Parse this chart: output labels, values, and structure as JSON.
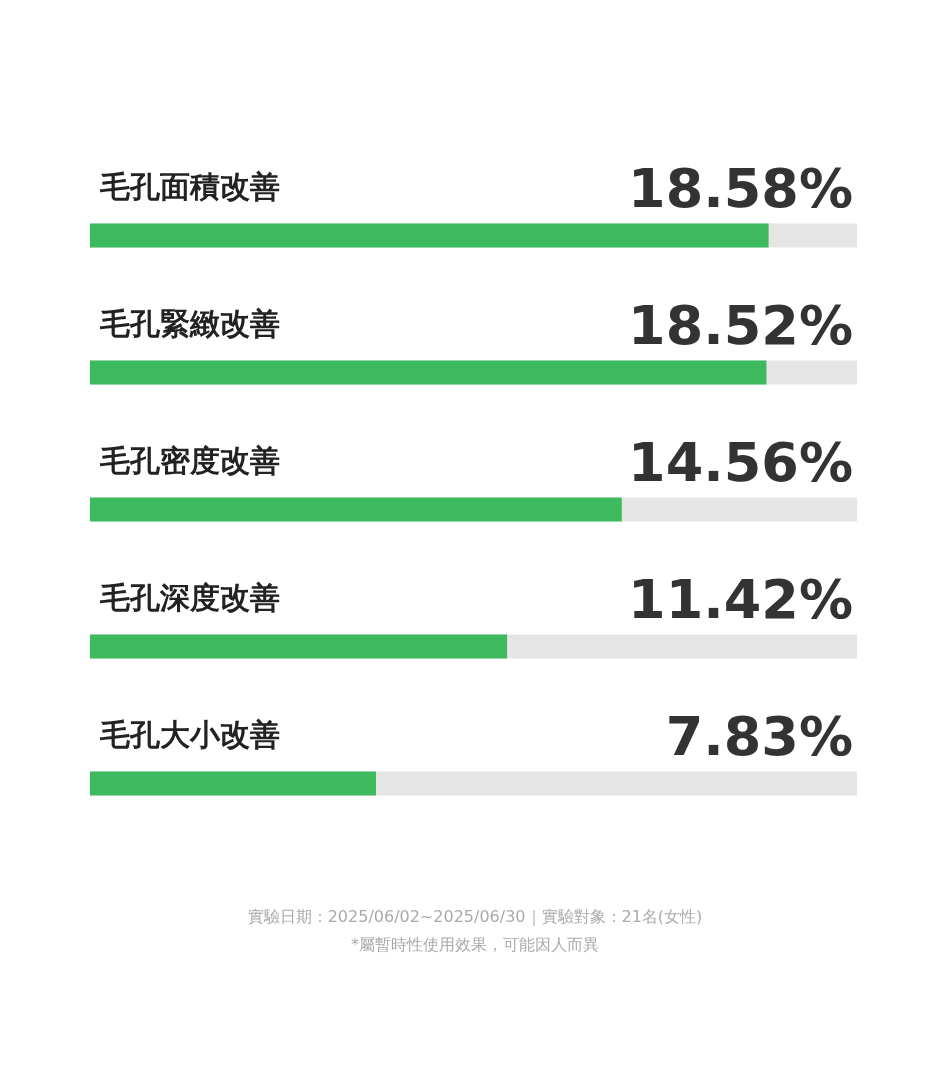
{
  "chart_data": {
    "type": "bar",
    "orientation": "horizontal",
    "categories": [
      "毛孔面積改善",
      "毛孔緊緻改善",
      "毛孔密度改善",
      "毛孔深度改善",
      "毛孔大小改善"
    ],
    "values": [
      18.58,
      18.52,
      14.56,
      11.42,
      7.83
    ],
    "value_labels": [
      "18.58%",
      "18.52%",
      "14.56%",
      "11.42%",
      "7.83%"
    ],
    "color": "#3dba5e",
    "annotations": [
      "實驗日期：2025/06/02~2025/06/30｜實驗對象：21名(女性)",
      "*屬暫時性使用效果，可能因人而異"
    ]
  }
}
